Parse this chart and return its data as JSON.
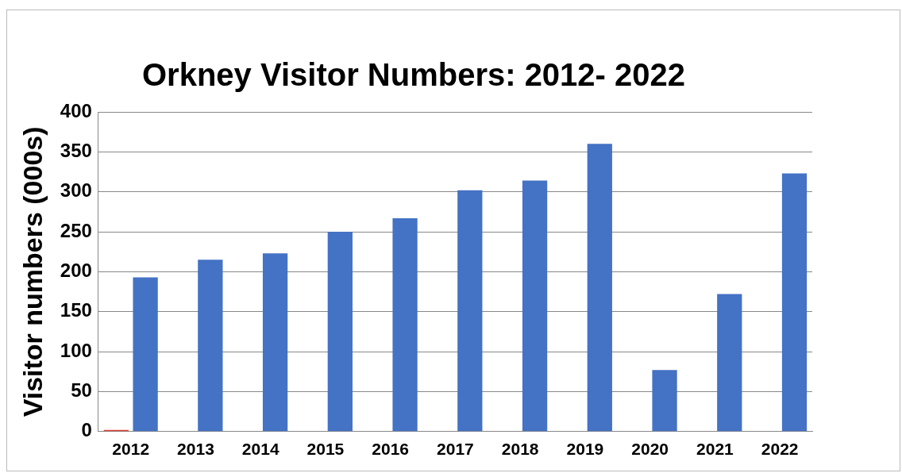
{
  "chart_data": {
    "type": "bar",
    "title": "Orkney Visitor Numbers: 2012- 2022",
    "ylabel": "Visitor numbers (000s)",
    "categories": [
      "2012",
      "2013",
      "2014",
      "2015",
      "2016",
      "2017",
      "2018",
      "2019",
      "2020",
      "2021",
      "2022"
    ],
    "series": [
      {
        "color": "#e03c31",
        "values": [
          2,
          null,
          null,
          null,
          null,
          null,
          null,
          null,
          null,
          null,
          null
        ]
      },
      {
        "color": "#4472c4",
        "values": [
          193,
          215,
          223,
          250,
          267,
          302,
          314,
          360,
          77,
          172,
          323
        ]
      }
    ],
    "ylim": [
      0,
      400
    ],
    "yticks": [
      0,
      50,
      100,
      150,
      200,
      250,
      300,
      350,
      400
    ],
    "grid": "y",
    "legend": false
  }
}
